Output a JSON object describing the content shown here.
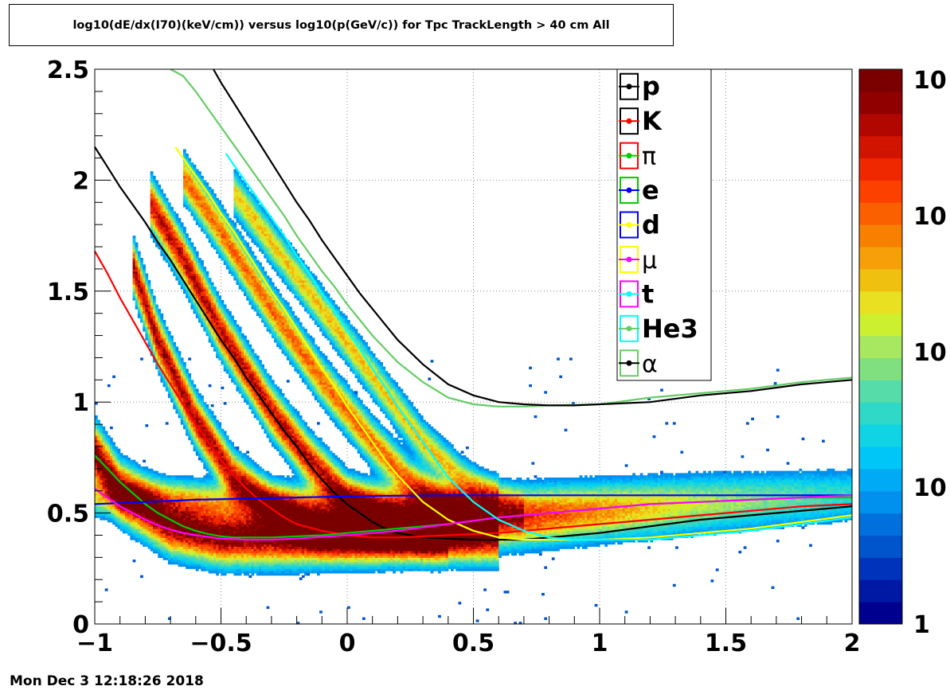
{
  "title": "log10(dE/dx(I70)(keV/cm)) versus log10(p(GeV/c)) for Tpc TrackLength > 40 cm All",
  "timestamp": "Mon Dec  3 12:18:26 2018",
  "chart_data": {
    "type": "heatmap",
    "title": "log10(dE/dx(I70)(keV/cm)) versus log10(p(GeV/c)) for Tpc TrackLength > 40 cm All",
    "xlabel": "",
    "ylabel": "",
    "xlim": [
      -1,
      2
    ],
    "ylim": [
      0,
      2.5
    ],
    "x_ticks": [
      -1,
      -0.5,
      0,
      0.5,
      1,
      1.5,
      2
    ],
    "x_tick_labels": [
      "−1",
      "−0.5",
      "0",
      "0.5",
      "1",
      "1.5",
      "2"
    ],
    "y_ticks": [
      0,
      0.5,
      1,
      1.5,
      2,
      2.5
    ],
    "y_tick_labels": [
      "0",
      "0.5",
      "1",
      "1.5",
      "2",
      "2.5"
    ],
    "grid": true,
    "z_scale": "log",
    "colorbar_labels": [
      "1",
      "10",
      "10",
      "10",
      "10"
    ],
    "legend_position": "top-right-inside",
    "bands": [
      {
        "name": "pi",
        "points": [
          [
            -1.0,
            0.77
          ],
          [
            -0.9,
            0.6
          ],
          [
            -0.7,
            0.45
          ],
          [
            -0.5,
            0.4
          ],
          [
            -0.2,
            0.4
          ],
          [
            0.1,
            0.42
          ],
          [
            0.5,
            0.47
          ],
          [
            1.0,
            0.51
          ],
          [
            1.5,
            0.55
          ],
          [
            2.0,
            0.58
          ]
        ],
        "width": 0.07,
        "weight": 1.0
      },
      {
        "name": "K",
        "points": [
          [
            -0.85,
            1.62
          ],
          [
            -0.75,
            1.28
          ],
          [
            -0.6,
            0.92
          ],
          [
            -0.45,
            0.66
          ],
          [
            -0.3,
            0.52
          ],
          [
            -0.15,
            0.44
          ],
          [
            0.0,
            0.41
          ],
          [
            0.2,
            0.4
          ],
          [
            0.4,
            0.41
          ]
        ],
        "width": 0.06,
        "weight": 0.85
      },
      {
        "name": "p",
        "points": [
          [
            -0.78,
            1.9
          ],
          [
            -0.65,
            1.65
          ],
          [
            -0.5,
            1.32
          ],
          [
            -0.3,
            0.96
          ],
          [
            -0.15,
            0.74
          ],
          [
            0.0,
            0.56
          ],
          [
            0.15,
            0.46
          ],
          [
            0.3,
            0.41
          ],
          [
            0.45,
            0.39
          ],
          [
            0.6,
            0.38
          ]
        ],
        "width": 0.06,
        "weight": 0.8
      },
      {
        "name": "d",
        "points": [
          [
            -0.65,
            2.02
          ],
          [
            -0.5,
            1.77
          ],
          [
            -0.3,
            1.42
          ],
          [
            -0.1,
            1.1
          ],
          [
            0.1,
            0.82
          ],
          [
            0.25,
            0.64
          ],
          [
            0.4,
            0.53
          ],
          [
            0.5,
            0.48
          ]
        ],
        "width": 0.055,
        "weight": 0.55
      },
      {
        "name": "t",
        "points": [
          [
            -0.45,
            1.95
          ],
          [
            -0.3,
            1.72
          ],
          [
            -0.1,
            1.42
          ],
          [
            0.1,
            1.12
          ],
          [
            0.3,
            0.82
          ],
          [
            0.45,
            0.66
          ],
          [
            0.6,
            0.55
          ],
          [
            0.7,
            0.5
          ]
        ],
        "width": 0.05,
        "weight": 0.4
      },
      {
        "name": "e",
        "points": [
          [
            -1.0,
            0.58
          ],
          [
            -0.6,
            0.56
          ],
          [
            -0.2,
            0.55
          ],
          [
            0.2,
            0.56
          ],
          [
            0.6,
            0.57
          ]
        ],
        "width": 0.05,
        "weight": 0.35
      }
    ],
    "series": [
      {
        "name": "p",
        "color": "#000000",
        "x": [
          -1.0,
          -0.95,
          -0.9,
          -0.85,
          -0.8,
          -0.75,
          -0.7,
          -0.65,
          -0.6,
          -0.55,
          -0.5,
          -0.45,
          -0.4,
          -0.35,
          -0.3,
          -0.25,
          -0.2,
          -0.15,
          -0.1,
          -0.05,
          0.0,
          0.05,
          0.1,
          0.15,
          0.2,
          0.3,
          0.4,
          0.5,
          0.6,
          0.7,
          0.8,
          0.9,
          1.0,
          1.2,
          1.4,
          1.6,
          1.8,
          2.0
        ],
        "y": [
          2.15,
          2.06,
          1.97,
          1.89,
          1.81,
          1.72,
          1.64,
          1.55,
          1.46,
          1.37,
          1.28,
          1.2,
          1.11,
          1.03,
          0.95,
          0.87,
          0.8,
          0.72,
          0.65,
          0.59,
          0.54,
          0.5,
          0.46,
          0.43,
          0.41,
          0.39,
          0.385,
          0.38,
          0.38,
          0.38,
          0.39,
          0.4,
          0.41,
          0.44,
          0.47,
          0.49,
          0.51,
          0.53
        ]
      },
      {
        "name": "K",
        "color": "#ff0000",
        "x": [
          -1.0,
          -0.95,
          -0.9,
          -0.85,
          -0.8,
          -0.75,
          -0.7,
          -0.65,
          -0.6,
          -0.55,
          -0.5,
          -0.45,
          -0.4,
          -0.35,
          -0.3,
          -0.25,
          -0.2,
          -0.1,
          0.0,
          0.1,
          0.2,
          0.4,
          0.6,
          0.8,
          1.0,
          1.2,
          1.4,
          1.6,
          1.8,
          2.0
        ],
        "y": [
          1.68,
          1.58,
          1.47,
          1.37,
          1.27,
          1.17,
          1.08,
          0.99,
          0.9,
          0.82,
          0.74,
          0.67,
          0.61,
          0.56,
          0.52,
          0.48,
          0.45,
          0.42,
          0.4,
          0.39,
          0.39,
          0.4,
          0.41,
          0.43,
          0.45,
          0.47,
          0.49,
          0.51,
          0.53,
          0.54
        ]
      },
      {
        "name": "π",
        "color": "#00cc00",
        "x": [
          -1.0,
          -0.95,
          -0.9,
          -0.85,
          -0.8,
          -0.75,
          -0.7,
          -0.65,
          -0.6,
          -0.55,
          -0.5,
          -0.45,
          -0.4,
          -0.3,
          -0.2,
          -0.1,
          0.0,
          0.2,
          0.4,
          0.6,
          0.8,
          1.0,
          1.2,
          1.4,
          1.6,
          1.8,
          2.0
        ],
        "y": [
          0.76,
          0.7,
          0.64,
          0.59,
          0.54,
          0.5,
          0.47,
          0.44,
          0.42,
          0.405,
          0.395,
          0.39,
          0.39,
          0.39,
          0.395,
          0.4,
          0.41,
          0.43,
          0.45,
          0.48,
          0.5,
          0.52,
          0.54,
          0.55,
          0.56,
          0.57,
          0.57
        ]
      },
      {
        "name": "e",
        "color": "#0000ff",
        "x": [
          -1.0,
          -0.8,
          -0.6,
          -0.4,
          -0.2,
          0.0,
          0.2,
          0.4,
          0.6,
          0.8,
          1.0,
          1.5,
          2.0
        ],
        "y": [
          0.54,
          0.55,
          0.56,
          0.565,
          0.57,
          0.575,
          0.578,
          0.58,
          0.58,
          0.58,
          0.58,
          0.58,
          0.58
        ]
      },
      {
        "name": "d",
        "color": "#ffff00",
        "x": [
          -0.68,
          -0.65,
          -0.6,
          -0.55,
          -0.5,
          -0.45,
          -0.4,
          -0.35,
          -0.3,
          -0.25,
          -0.2,
          -0.15,
          -0.1,
          -0.05,
          0.0,
          0.05,
          0.1,
          0.15,
          0.2,
          0.3,
          0.4,
          0.5,
          0.6,
          0.7,
          0.8,
          1.0,
          1.2,
          1.4,
          1.6,
          1.8,
          2.0
        ],
        "y": [
          2.15,
          2.1,
          2.02,
          1.94,
          1.85,
          1.77,
          1.68,
          1.59,
          1.5,
          1.42,
          1.33,
          1.24,
          1.15,
          1.07,
          0.98,
          0.9,
          0.82,
          0.74,
          0.67,
          0.55,
          0.47,
          0.42,
          0.39,
          0.38,
          0.38,
          0.38,
          0.39,
          0.41,
          0.43,
          0.46,
          0.49
        ]
      },
      {
        "name": "μ",
        "color": "#ff00ff",
        "x": [
          -1.0,
          -0.95,
          -0.9,
          -0.85,
          -0.8,
          -0.75,
          -0.7,
          -0.65,
          -0.6,
          -0.5,
          -0.4,
          -0.3,
          -0.2,
          0.0,
          0.2,
          0.4,
          0.6,
          0.8,
          1.0,
          1.2,
          1.4,
          1.6,
          1.8,
          2.0
        ],
        "y": [
          0.61,
          0.57,
          0.53,
          0.5,
          0.47,
          0.445,
          0.425,
          0.41,
          0.4,
          0.385,
          0.38,
          0.38,
          0.385,
          0.4,
          0.42,
          0.45,
          0.48,
          0.5,
          0.52,
          0.54,
          0.55,
          0.56,
          0.57,
          0.58
        ]
      },
      {
        "name": "t",
        "color": "#00ffff",
        "x": [
          -0.48,
          -0.45,
          -0.4,
          -0.35,
          -0.3,
          -0.25,
          -0.2,
          -0.15,
          -0.1,
          -0.05,
          0.0,
          0.05,
          0.1,
          0.15,
          0.2,
          0.25,
          0.3,
          0.35,
          0.4,
          0.5,
          0.6,
          0.7,
          0.8,
          0.9,
          1.0,
          1.2,
          1.4,
          1.6,
          1.8,
          2.0
        ],
        "y": [
          2.12,
          2.07,
          1.99,
          1.91,
          1.83,
          1.75,
          1.66,
          1.58,
          1.49,
          1.41,
          1.32,
          1.24,
          1.15,
          1.07,
          0.98,
          0.9,
          0.82,
          0.74,
          0.66,
          0.55,
          0.47,
          0.42,
          0.39,
          0.38,
          0.38,
          0.38,
          0.4,
          0.42,
          0.45,
          0.48
        ]
      },
      {
        "name": "He3",
        "color": "#66cc66",
        "x": [
          -0.7,
          -0.65,
          -0.6,
          -0.55,
          -0.5,
          -0.45,
          -0.4,
          -0.35,
          -0.3,
          -0.25,
          -0.2,
          -0.15,
          -0.1,
          -0.05,
          0.0,
          0.05,
          0.1,
          0.15,
          0.2,
          0.3,
          0.4,
          0.5,
          0.6,
          0.7,
          0.8,
          1.0,
          1.2,
          1.4,
          1.6,
          1.8,
          2.0
        ],
        "y": [
          2.5,
          2.47,
          2.4,
          2.32,
          2.24,
          2.16,
          2.08,
          2.0,
          1.92,
          1.84,
          1.75,
          1.67,
          1.59,
          1.52,
          1.44,
          1.37,
          1.3,
          1.24,
          1.18,
          1.09,
          1.02,
          0.99,
          0.98,
          0.98,
          0.985,
          0.99,
          1.02,
          1.04,
          1.06,
          1.09,
          1.11
        ]
      },
      {
        "name": "α",
        "color": "#000000",
        "x": [
          -0.53,
          -0.5,
          -0.45,
          -0.4,
          -0.35,
          -0.3,
          -0.25,
          -0.2,
          -0.15,
          -0.1,
          -0.05,
          0.0,
          0.05,
          0.1,
          0.15,
          0.2,
          0.3,
          0.4,
          0.5,
          0.6,
          0.7,
          0.8,
          0.9,
          1.0,
          1.2,
          1.4,
          1.6,
          1.8,
          2.0
        ],
        "y": [
          2.5,
          2.44,
          2.35,
          2.26,
          2.17,
          2.08,
          1.99,
          1.9,
          1.82,
          1.73,
          1.65,
          1.57,
          1.49,
          1.42,
          1.35,
          1.28,
          1.17,
          1.08,
          1.03,
          1.0,
          0.99,
          0.985,
          0.985,
          0.99,
          1.0,
          1.03,
          1.05,
          1.08,
          1.1
        ]
      }
    ],
    "legend": [
      {
        "label": "p",
        "line_color": "#000000",
        "box_color": "#000000",
        "bold": true
      },
      {
        "label": "K",
        "line_color": "#ff0000",
        "box_color": "#000000",
        "bold": true
      },
      {
        "label": "π",
        "line_color": "#00cc00",
        "box_color": "#ff0000",
        "bold": false
      },
      {
        "label": "e",
        "line_color": "#0000ff",
        "box_color": "#00cc00",
        "bold": true
      },
      {
        "label": "d",
        "line_color": "#ffff00",
        "box_color": "#0000ff",
        "bold": true
      },
      {
        "label": "μ",
        "line_color": "#ff00ff",
        "box_color": "#ffff00",
        "bold": false
      },
      {
        "label": "t",
        "line_color": "#00ffff",
        "box_color": "#ff00ff",
        "bold": true
      },
      {
        "label": "He3",
        "line_color": "#66cc66",
        "box_color": "#00ffff",
        "bold": true
      },
      {
        "label": "α",
        "line_color": "#000000",
        "box_color": "#66cc66",
        "bold": false
      }
    ],
    "palette": [
      "#00008f",
      "#0019a5",
      "#0033bb",
      "#0055cc",
      "#0070dd",
      "#0090ee",
      "#00aaf4",
      "#00c6f8",
      "#10d4e4",
      "#30d8c8",
      "#55dca8",
      "#80e080",
      "#a8e860",
      "#ccf030",
      "#e8e020",
      "#f0c010",
      "#f5a008",
      "#f88000",
      "#fa6000",
      "#fc4000",
      "#f02800",
      "#d01400",
      "#b00800",
      "#900000",
      "#7a0000"
    ]
  }
}
